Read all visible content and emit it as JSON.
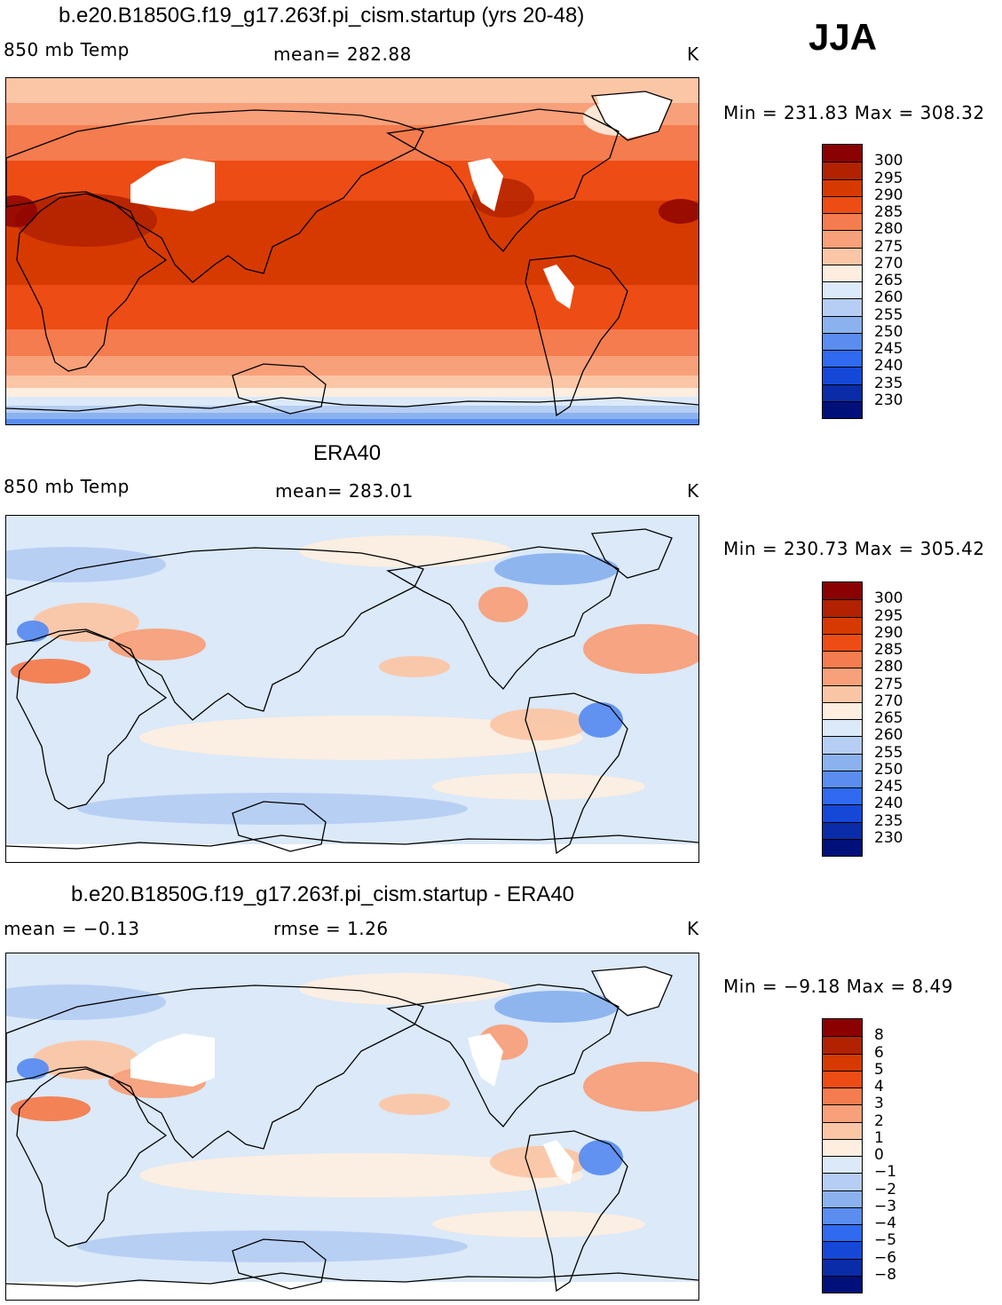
{
  "season": "JJA",
  "panels": [
    {
      "title": "b.e20.B1850G.f19_g17.263f.pi_cism.startup (yrs 20-48)",
      "variable": "850 mb Temp",
      "stat": "mean=  282.88",
      "stat2": "",
      "units": "K",
      "minmax": "Min = 231.83 Max = 308.32",
      "colorbar": {
        "labels": [
          "300",
          "295",
          "290",
          "285",
          "280",
          "275",
          "270",
          "265",
          "260",
          "255",
          "250",
          "245",
          "240",
          "235",
          "230"
        ],
        "colors": [
          "#8b0000",
          "#b22200",
          "#d63a00",
          "#ee4c15",
          "#f47c4e",
          "#f8a07a",
          "#fbc6a6",
          "#fdeee0",
          "#dbe9f8",
          "#b6cef3",
          "#8bb2ee",
          "#5b8df0",
          "#2f6af0",
          "#1648d8",
          "#0a2ca8",
          "#00107a"
        ]
      }
    },
    {
      "title": "ERA40",
      "variable": "850 mb Temp",
      "stat": "mean=  283.01",
      "stat2": "",
      "units": "K",
      "minmax": "Min = 230.73 Max = 305.42",
      "colorbar": {
        "labels": [
          "300",
          "295",
          "290",
          "285",
          "280",
          "275",
          "270",
          "265",
          "260",
          "255",
          "250",
          "245",
          "240",
          "235",
          "230"
        ],
        "colors": [
          "#8b0000",
          "#b22200",
          "#d63a00",
          "#ee4c15",
          "#f47c4e",
          "#f8a07a",
          "#fbc6a6",
          "#fdeee0",
          "#dbe9f8",
          "#b6cef3",
          "#8bb2ee",
          "#5b8df0",
          "#2f6af0",
          "#1648d8",
          "#0a2ca8",
          "#00107a"
        ]
      }
    },
    {
      "title": "b.e20.B1850G.f19_g17.263f.pi_cism.startup - ERA40",
      "variable": "mean =   −0.13",
      "stat": "rmse =    1.26",
      "stat2": "",
      "units": "K",
      "minmax": "Min =   −9.18 Max =    8.49",
      "colorbar": {
        "labels": [
          "8",
          "6",
          "5",
          "4",
          "3",
          "2",
          "1",
          "0",
          "−1",
          "−2",
          "−3",
          "−4",
          "−5",
          "−6",
          "−8"
        ],
        "colors": [
          "#8b0000",
          "#b22200",
          "#d63a00",
          "#ee4c15",
          "#f47c4e",
          "#f8a07a",
          "#fbc6a6",
          "#fdeee0",
          "#dbe9f8",
          "#b6cef3",
          "#8bb2ee",
          "#5b8df0",
          "#2f6af0",
          "#1648d8",
          "#0a2ca8",
          "#00107a"
        ]
      }
    }
  ]
}
